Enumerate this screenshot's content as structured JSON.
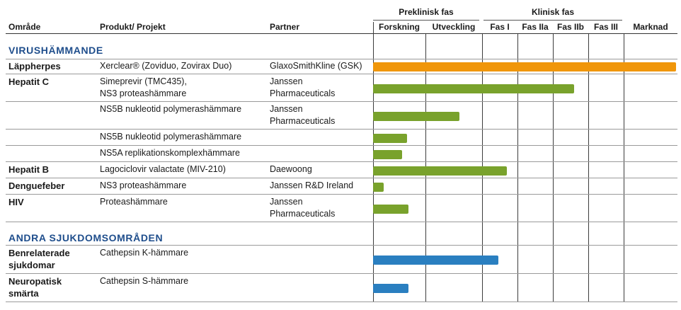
{
  "header": {
    "col_area": "Område",
    "col_product": "Produkt/ Projekt",
    "col_partner": "Partner",
    "group_preclinical": "Preklinisk fas",
    "group_clinical": "Klinisk fas",
    "phases": [
      "Forskning",
      "Utveckling",
      "Fas I",
      "Fas IIa",
      "Fas IIb",
      "Fas III",
      "Marknad"
    ]
  },
  "sections": [
    {
      "title": "VIRUSHÄMMANDE",
      "rows": [
        {
          "area": "Läppherpes",
          "product": [
            "Xerclear® (Zoviduo, Zovirax Duo)"
          ],
          "partner": [
            "GlaxoSmithKline (GSK)"
          ]
        },
        {
          "area": "Hepatit C",
          "product": [
            "Simeprevir (TMC435),",
            "NS3 proteashämmare"
          ],
          "partner": [
            "Janssen",
            "Pharmaceuticals"
          ]
        },
        {
          "area": "",
          "product": [
            "NS5B nukleotid polymerashämmare"
          ],
          "partner": [
            "Janssen",
            "Pharmaceuticals"
          ]
        },
        {
          "area": "",
          "product": [
            "NS5B nukleotid polymerashämmare"
          ],
          "partner": [
            ""
          ]
        },
        {
          "area": "",
          "product": [
            "NS5A replikationskomplexhämmare"
          ],
          "partner": [
            ""
          ]
        },
        {
          "area": "Hepatit B",
          "product": [
            "Lagociclovir valactate (MIV-210)"
          ],
          "partner": [
            "Daewoong"
          ]
        },
        {
          "area": "Denguefeber",
          "product": [
            "NS3 proteashämmare"
          ],
          "partner": [
            "Janssen R&D Ireland"
          ]
        },
        {
          "area": "HIV",
          "product": [
            "Proteashämmare"
          ],
          "partner": [
            "Janssen",
            "Pharmaceuticals"
          ]
        }
      ]
    },
    {
      "title": "ANDRA SJUKDOMSOMRÅDEN",
      "rows": [
        {
          "area": [
            "Benrelaterade",
            "sjukdomar"
          ],
          "product": [
            "Cathepsin K-hämmare"
          ],
          "partner": [
            ""
          ]
        },
        {
          "area": [
            "Neuropatisk",
            "smärta"
          ],
          "product": [
            "Cathepsin S-hämmare"
          ],
          "partner": [
            ""
          ]
        }
      ]
    }
  ],
  "colors": {
    "marketed": "#f0960a",
    "virus": "#79a22c",
    "other": "#2a7fc0",
    "section_title": "#1f4e8c"
  },
  "chart_data": {
    "type": "bar",
    "orientation": "horizontal",
    "x_scale": "phase columns",
    "categories": [
      "Xerclear® (Zoviduo, Zovirax Duo)",
      "Simeprevir (TMC435), NS3 proteashämmare",
      "NS5B nukleotid polymerashämmare (Janssen)",
      "NS5B nukleotid polymerashämmare",
      "NS5A replikationskomplexhämmare",
      "Lagociclovir valactate (MIV-210)",
      "NS3 proteashämmare",
      "Proteashämmare",
      "Cathepsin K-hämmare",
      "Cathepsin S-hämmare"
    ],
    "phases": [
      "Forskning",
      "Utveckling",
      "Fas I",
      "Fas IIa",
      "Fas IIb",
      "Fas III",
      "Marknad"
    ],
    "values": [
      7.0,
      4.6,
      1.6,
      0.65,
      0.55,
      2.7,
      0.2,
      0.67,
      2.45,
      0.67
    ],
    "bar_colors": [
      "#f0960a",
      "#79a22c",
      "#79a22c",
      "#79a22c",
      "#79a22c",
      "#79a22c",
      "#79a22c",
      "#79a22c",
      "#2a7fc0",
      "#2a7fc0"
    ],
    "xlim": [
      0,
      7
    ]
  }
}
